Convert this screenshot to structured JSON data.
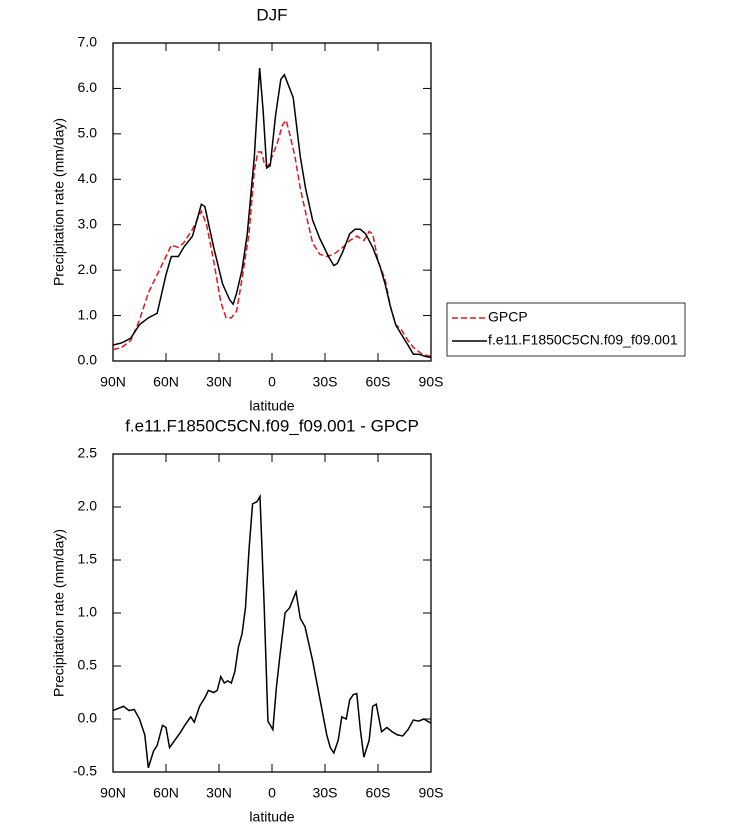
{
  "chart_data": [
    {
      "type": "line",
      "title": "DJF",
      "xlabel": "latitude",
      "ylabel": "Precipitation rate (mm/day)",
      "xlim": [
        90,
        -90
      ],
      "xticks": [
        {
          "value": 90,
          "label": "90N"
        },
        {
          "value": 60,
          "label": "60N"
        },
        {
          "value": 30,
          "label": "30N"
        },
        0,
        {
          "value": -30,
          "label": "30S"
        },
        {
          "value": -60,
          "label": "60S"
        },
        {
          "value": -90,
          "label": "90S"
        }
      ],
      "ylim": [
        0,
        7
      ],
      "yticks": [
        {
          "value": 0,
          "label": "0.0"
        },
        {
          "value": 1,
          "label": "1.0"
        },
        {
          "value": 2,
          "label": "2.0"
        },
        {
          "value": 3,
          "label": "3.0"
        },
        {
          "value": 4,
          "label": "4.0"
        },
        {
          "value": 5,
          "label": "5.0"
        },
        {
          "value": 6,
          "label": "6.0"
        },
        {
          "value": 7,
          "label": "7.0"
        }
      ],
      "legend": "right",
      "series": [
        {
          "name": "GPCP",
          "color": "#e8141c",
          "dash": true,
          "x": [
            90,
            85,
            80,
            75,
            70,
            65,
            60,
            57,
            53,
            50,
            45,
            40,
            37,
            33,
            29,
            26,
            23,
            20,
            17,
            13,
            10,
            8,
            6,
            4,
            2,
            0,
            -3,
            -6,
            -8,
            -10,
            -13,
            -16,
            -20,
            -23,
            -27,
            -31,
            -35,
            -40,
            -44,
            -48,
            -52,
            -55,
            -57,
            -60,
            -64,
            -67,
            -70,
            -73,
            -77,
            -80,
            -85,
            -90
          ],
          "values": [
            0.25,
            0.3,
            0.45,
            0.9,
            1.5,
            1.9,
            2.3,
            2.55,
            2.5,
            2.6,
            2.9,
            3.3,
            3.0,
            2.2,
            1.3,
            0.95,
            0.95,
            1.1,
            1.8,
            2.8,
            4.2,
            4.6,
            4.6,
            4.3,
            4.3,
            4.5,
            4.8,
            5.2,
            5.3,
            5.0,
            4.5,
            3.8,
            3.1,
            2.6,
            2.35,
            2.3,
            2.35,
            2.5,
            2.65,
            2.75,
            2.65,
            2.85,
            2.8,
            2.2,
            1.8,
            1.2,
            0.8,
            0.7,
            0.45,
            0.3,
            0.15,
            0.1
          ]
        },
        {
          "name": "f.e11.F1850C5CN.f09_f09.001",
          "color": "#000000",
          "dash": false,
          "x": [
            90,
            85,
            80,
            75,
            70,
            65,
            60,
            57,
            53,
            50,
            45,
            40,
            38,
            33,
            28,
            24,
            22,
            20,
            17,
            14,
            10,
            7,
            5,
            3,
            1,
            -2,
            -5,
            -7,
            -10,
            -12,
            -16,
            -19,
            -23,
            -27,
            -32,
            -35,
            -37,
            -40,
            -44,
            -47,
            -50,
            -53,
            -57,
            -61,
            -64,
            -67,
            -70,
            -73,
            -77,
            -80,
            -83,
            -87,
            -90
          ],
          "values": [
            0.35,
            0.4,
            0.5,
            0.8,
            0.95,
            1.05,
            1.9,
            2.3,
            2.3,
            2.5,
            2.75,
            3.45,
            3.4,
            2.5,
            1.7,
            1.35,
            1.25,
            1.5,
            2.0,
            2.8,
            4.5,
            6.45,
            5.5,
            4.25,
            4.3,
            5.4,
            6.2,
            6.3,
            6.0,
            5.8,
            4.5,
            3.8,
            3.1,
            2.7,
            2.3,
            2.1,
            2.15,
            2.4,
            2.8,
            2.9,
            2.9,
            2.8,
            2.5,
            2.1,
            1.7,
            1.2,
            0.8,
            0.6,
            0.35,
            0.15,
            0.15,
            0.1,
            0.08
          ]
        }
      ]
    },
    {
      "type": "line",
      "title": "f.e11.F1850C5CN.f09_f09.001 - GPCP",
      "xlabel": "latitude",
      "ylabel": "Precipitation rate (mm/day)",
      "xlim": [
        90,
        -90
      ],
      "xticks": [
        {
          "value": 90,
          "label": "90N"
        },
        {
          "value": 60,
          "label": "60N"
        },
        {
          "value": 30,
          "label": "30N"
        },
        0,
        {
          "value": -30,
          "label": "30S"
        },
        {
          "value": -60,
          "label": "60S"
        },
        {
          "value": -90,
          "label": "90S"
        }
      ],
      "ylim": [
        -0.5,
        2.5
      ],
      "yticks": [
        -0.5,
        {
          "value": 0,
          "label": "0.0"
        },
        0.5,
        {
          "value": 1,
          "label": "1.0"
        },
        1.5,
        {
          "value": 2,
          "label": "2.0"
        },
        2.5
      ],
      "series": [
        {
          "color": "#000000",
          "dash": false,
          "x": [
            90,
            87,
            84,
            81,
            78,
            75,
            72,
            70,
            67,
            65,
            62,
            60,
            58,
            55,
            52,
            49,
            46,
            44,
            41,
            38,
            36,
            33,
            31,
            29,
            27,
            25,
            23,
            21,
            19,
            17,
            15,
            13,
            11,
            8.5,
            6.8,
            4.5,
            2.3,
            -0.5,
            -2.5,
            -4.5,
            -7.4,
            -10,
            -13.6,
            -16,
            -18.7,
            -23,
            -27,
            -31,
            -33,
            -35,
            -37.5,
            -39.5,
            -42,
            -44,
            -46,
            -48,
            -50,
            -52,
            -55,
            -57,
            -59,
            -62,
            -65,
            -68,
            -71,
            -74,
            -77,
            -80,
            -83,
            -86,
            -90
          ],
          "values": [
            0.08,
            0.1,
            0.12,
            0.08,
            0.09,
            0.0,
            -0.15,
            -0.46,
            -0.3,
            -0.25,
            -0.06,
            -0.08,
            -0.27,
            -0.2,
            -0.13,
            -0.05,
            0.02,
            -0.03,
            0.12,
            0.2,
            0.27,
            0.25,
            0.27,
            0.4,
            0.34,
            0.36,
            0.34,
            0.45,
            0.68,
            0.8,
            1.05,
            1.6,
            2.03,
            2.05,
            2.1,
            1.1,
            -0.02,
            -0.1,
            0.3,
            0.6,
            1.0,
            1.05,
            1.2,
            0.95,
            0.87,
            0.55,
            0.2,
            -0.15,
            -0.27,
            -0.32,
            -0.2,
            0.02,
            0.0,
            0.18,
            0.23,
            0.24,
            -0.1,
            -0.36,
            -0.2,
            0.12,
            0.14,
            -0.12,
            -0.08,
            -0.12,
            -0.15,
            -0.16,
            -0.1,
            -0.01,
            -0.02,
            0.0,
            -0.04
          ]
        }
      ]
    }
  ]
}
